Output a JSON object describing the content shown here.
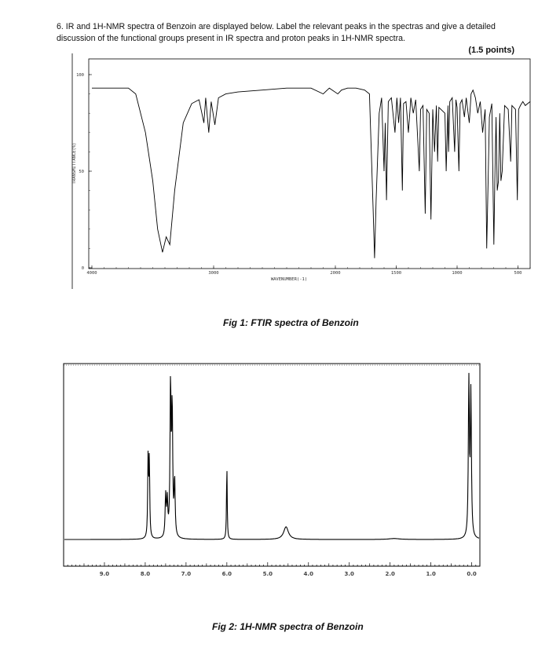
{
  "question": {
    "text": "6. IR and 1H-NMR spectra of Benzoin are displayed below. Label the relevant peaks in the spectras and give a detailed discussion of the functional groups present in IR spectra and proton peaks in 1H-NMR spectra.",
    "points": "(1.5 points)"
  },
  "fig1": {
    "caption": "Fig 1: FTIR spectra of Benzoin",
    "chart_data": {
      "type": "line",
      "xlabel": "WAVENUMBER(-1)",
      "ylabel": "TRANSMITTANCE(%)",
      "xlim": [
        4000,
        400
      ],
      "ylim": [
        0,
        100
      ],
      "x_ticks": [
        "4000",
        "3000",
        "2000",
        "1500",
        "1000",
        "500"
      ],
      "y_ticks": [
        "100",
        "50",
        "0"
      ],
      "spectrum": [
        [
          4000,
          93
        ],
        [
          3700,
          93
        ],
        [
          3640,
          90
        ],
        [
          3560,
          70
        ],
        [
          3500,
          45
        ],
        [
          3460,
          20
        ],
        [
          3420,
          8
        ],
        [
          3390,
          16
        ],
        [
          3360,
          12
        ],
        [
          3320,
          40
        ],
        [
          3250,
          75
        ],
        [
          3180,
          85
        ],
        [
          3120,
          87
        ],
        [
          3080,
          75
        ],
        [
          3065,
          88
        ],
        [
          3040,
          70
        ],
        [
          3020,
          86
        ],
        [
          2990,
          74
        ],
        [
          2960,
          88
        ],
        [
          2900,
          90
        ],
        [
          2800,
          91
        ],
        [
          2600,
          92
        ],
        [
          2400,
          93
        ],
        [
          2200,
          93
        ],
        [
          2100,
          90
        ],
        [
          2050,
          93
        ],
        [
          1980,
          90
        ],
        [
          1950,
          92
        ],
        [
          1900,
          93
        ],
        [
          1830,
          93
        ],
        [
          1760,
          92
        ],
        [
          1720,
          90
        ],
        [
          1690,
          30
        ],
        [
          1678,
          5
        ],
        [
          1665,
          35
        ],
        [
          1640,
          80
        ],
        [
          1620,
          88
        ],
        [
          1600,
          50
        ],
        [
          1590,
          75
        ],
        [
          1580,
          35
        ],
        [
          1565,
          86
        ],
        [
          1540,
          88
        ],
        [
          1510,
          70
        ],
        [
          1495,
          88
        ],
        [
          1480,
          75
        ],
        [
          1465,
          88
        ],
        [
          1450,
          40
        ],
        [
          1440,
          85
        ],
        [
          1420,
          86
        ],
        [
          1400,
          70
        ],
        [
          1380,
          88
        ],
        [
          1360,
          80
        ],
        [
          1340,
          87
        ],
        [
          1310,
          50
        ],
        [
          1300,
          82
        ],
        [
          1280,
          84
        ],
        [
          1262,
          28
        ],
        [
          1250,
          82
        ],
        [
          1230,
          80
        ],
        [
          1215,
          25
        ],
        [
          1200,
          82
        ],
        [
          1185,
          60
        ],
        [
          1170,
          84
        ],
        [
          1160,
          55
        ],
        [
          1150,
          83
        ],
        [
          1100,
          80
        ],
        [
          1090,
          50
        ],
        [
          1075,
          84
        ],
        [
          1070,
          60
        ],
        [
          1060,
          86
        ],
        [
          1040,
          88
        ],
        [
          1020,
          60
        ],
        [
          1010,
          87
        ],
        [
          1000,
          83
        ],
        [
          985,
          50
        ],
        [
          975,
          85
        ],
        [
          960,
          87
        ],
        [
          940,
          78
        ],
        [
          925,
          88
        ],
        [
          900,
          75
        ],
        [
          885,
          90
        ],
        [
          870,
          92
        ],
        [
          850,
          88
        ],
        [
          830,
          80
        ],
        [
          810,
          86
        ],
        [
          790,
          70
        ],
        [
          770,
          82
        ],
        [
          757,
          10
        ],
        [
          745,
          45
        ],
        [
          735,
          78
        ],
        [
          715,
          85
        ],
        [
          698,
          12
        ],
        [
          690,
          45
        ],
        [
          680,
          78
        ],
        [
          670,
          40
        ],
        [
          660,
          45
        ],
        [
          650,
          80
        ],
        [
          640,
          45
        ],
        [
          630,
          50
        ],
        [
          610,
          84
        ],
        [
          595,
          83
        ],
        [
          580,
          82
        ],
        [
          560,
          55
        ],
        [
          550,
          84
        ],
        [
          520,
          82
        ],
        [
          505,
          35
        ],
        [
          495,
          82
        ],
        [
          480,
          84
        ],
        [
          460,
          86
        ],
        [
          440,
          84
        ],
        [
          400,
          86
        ]
      ]
    }
  },
  "fig2": {
    "caption": "Fig 2: 1H-NMR spectra of Benzoin",
    "chart_data": {
      "type": "line",
      "xlim": [
        10.0,
        -0.2
      ],
      "x_ticks": [
        "9.0",
        "8.0",
        "7.0",
        "6.0",
        "5.0",
        "4.0",
        "3.0",
        "2.0",
        "1.0",
        "0.0"
      ],
      "peaks": [
        {
          "ppm": 7.93,
          "height": 0.5,
          "width": 0.012
        },
        {
          "ppm": 7.9,
          "height": 0.48,
          "width": 0.012
        },
        {
          "ppm": 7.5,
          "height": 0.26,
          "width": 0.015
        },
        {
          "ppm": 7.46,
          "height": 0.22,
          "width": 0.015
        },
        {
          "ppm": 7.38,
          "height": 0.95,
          "width": 0.015
        },
        {
          "ppm": 7.34,
          "height": 0.8,
          "width": 0.015
        },
        {
          "ppm": 7.28,
          "height": 0.35,
          "width": 0.015
        },
        {
          "ppm": 6.0,
          "height": 0.47,
          "width": 0.01
        },
        {
          "ppm": 4.55,
          "height": 0.08,
          "width": 0.07
        },
        {
          "ppm": 1.9,
          "height": 0.006,
          "width": 0.15
        },
        {
          "ppm": 0.07,
          "height": 1.0,
          "width": 0.015
        },
        {
          "ppm": 0.02,
          "height": 0.9,
          "width": 0.015
        }
      ]
    }
  }
}
